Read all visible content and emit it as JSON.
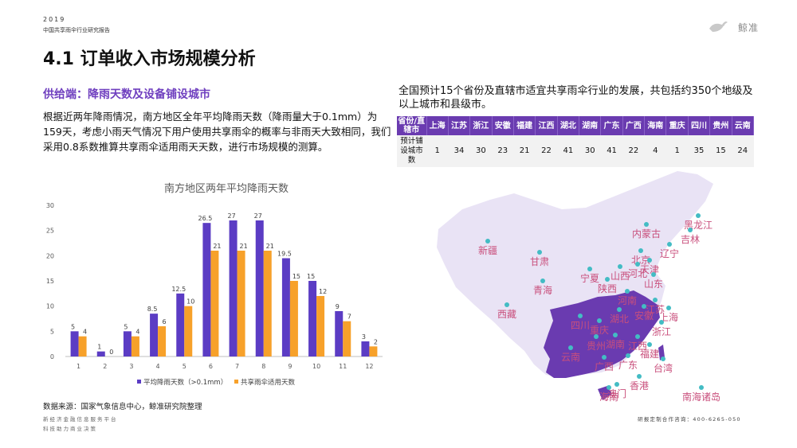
{
  "header": {
    "year": "2019",
    "report_name": "中国共享雨伞行业研究报告",
    "brand": "鲸准"
  },
  "title": "4.1 订单收入市场规模分析",
  "subtitle": "供给端：降雨天数及设备铺设城市",
  "paragraph": "根据近两年降雨情况，南方地区全年平均降雨天数（降雨量大于0.1mm）为159天，考虑小雨天气情况下用户使用共享雨伞的概率与非雨天大致相同，我们采用0.8系数推算共享雨伞适用雨天天数，进行市场规模的测算。",
  "chart_data": {
    "type": "bar",
    "title": "南方地区两年平均降雨天数",
    "categories": [
      "1",
      "2",
      "3",
      "4",
      "5",
      "6",
      "7",
      "8",
      "9",
      "10",
      "11",
      "12"
    ],
    "series": [
      {
        "name": "平均降雨天数（>0.1mm）",
        "color": "#5b3cc4",
        "values": [
          5,
          1,
          5,
          8.5,
          12.5,
          26.5,
          27,
          27,
          19.5,
          15,
          9,
          3
        ]
      },
      {
        "name": "共享雨伞适用天数",
        "color": "#f7a12a",
        "values": [
          4,
          0,
          4,
          6,
          10,
          21,
          21,
          21,
          15,
          12,
          7,
          2
        ]
      }
    ],
    "ylim": [
      0,
      30
    ],
    "yticks": [
      0,
      5,
      10,
      15,
      20,
      25,
      30
    ],
    "grid": false,
    "legend": "bottom"
  },
  "source": "数据来源：国家气象信息中心，鲸准研究院整理",
  "footer": {
    "line1": "新经济金融信息服务平台",
    "line2": "科技助力商业决策",
    "consult": "研报定制合作咨询：400-6265-050"
  },
  "summary": "全国预计15个省份及直辖市适宜共享雨伞行业的发展，共包括约350个地级及以上城市和县级市。",
  "table": {
    "header_label": "省份/直辖市",
    "row_label": "预计铺设城市数",
    "provinces": [
      "上海",
      "江苏",
      "浙江",
      "安徽",
      "福建",
      "江西",
      "湖北",
      "湖南",
      "广东",
      "广西",
      "海南",
      "重庆",
      "四川",
      "贵州",
      "云南"
    ],
    "counts": [
      "1",
      "34",
      "30",
      "23",
      "21",
      "22",
      "41",
      "30",
      "41",
      "22",
      "4",
      "1",
      "35",
      "15",
      "24"
    ]
  },
  "map": {
    "colors": {
      "base": "#e9e3f5",
      "highlight": "#6a3bb0",
      "marker": "#43bcc4",
      "label": "#c94f7c"
    },
    "labels": [
      "黑龙江",
      "吉林",
      "内蒙古",
      "辽宁",
      "新疆",
      "甘肃",
      "北京",
      "天津",
      "河北",
      "山西",
      "宁夏",
      "青海",
      "陕西",
      "山东",
      "河南",
      "江苏",
      "上海",
      "安徽",
      "湖北",
      "四川",
      "重庆",
      "浙江",
      "西藏",
      "湖南",
      "江西",
      "贵州",
      "福建",
      "云南",
      "广西",
      "广东",
      "台湾",
      "香港",
      "澳门",
      "海南",
      "南海诸岛"
    ]
  }
}
